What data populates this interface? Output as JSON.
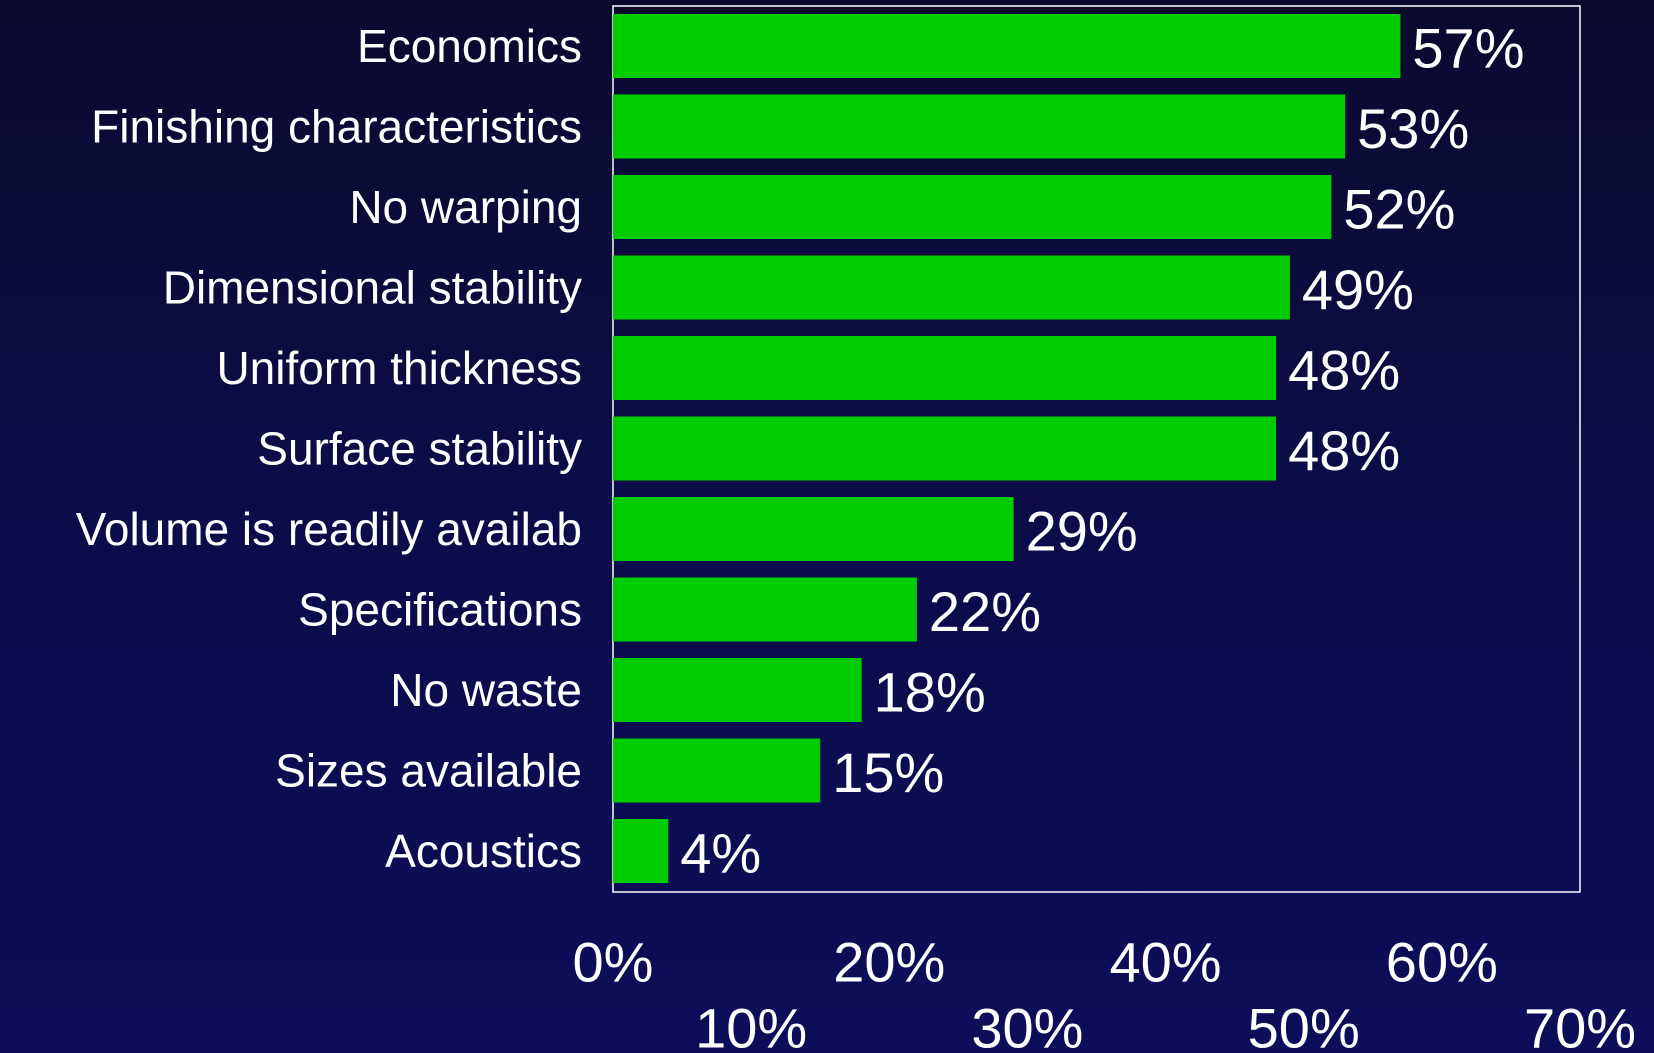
{
  "chart_data": {
    "type": "bar",
    "orientation": "horizontal",
    "title": "",
    "xlabel": "",
    "ylabel": "",
    "categories": [
      "Economics",
      "Finishing characteristics",
      "No warping",
      "Dimensional stability",
      "Uniform thickness",
      "Surface stability",
      "Volume is readily availab",
      "Specifications",
      "No waste",
      "Sizes available",
      "Acoustics"
    ],
    "values": [
      57,
      53,
      52,
      49,
      48,
      48,
      29,
      22,
      18,
      15,
      4
    ],
    "value_labels": [
      "57%",
      "53%",
      "52%",
      "49%",
      "48%",
      "48%",
      "29%",
      "22%",
      "18%",
      "15%",
      "4%"
    ],
    "xlim": [
      0,
      70
    ],
    "x_ticks": [
      0,
      10,
      20,
      30,
      40,
      50,
      60,
      70
    ],
    "x_tick_labels": [
      "0%",
      "10%",
      "20%",
      "30%",
      "40%",
      "50%",
      "60%",
      "70%"
    ],
    "grid": false,
    "legend": "none",
    "colors": {
      "bar": "#00cc00",
      "text": "#ffffff",
      "frame": "#ffffff",
      "background": "#0c0c48"
    }
  }
}
